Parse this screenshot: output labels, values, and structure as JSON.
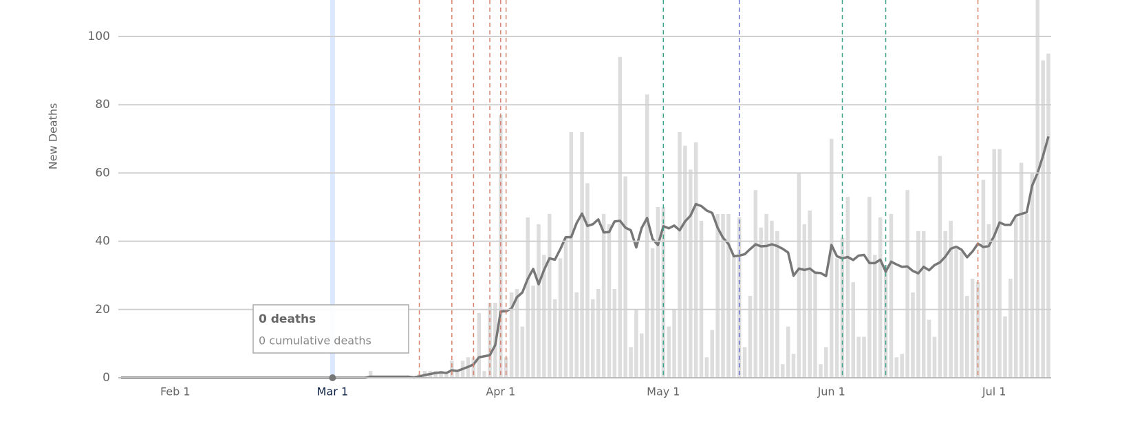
{
  "chart_data": {
    "type": "bar",
    "y_label": "New Deaths",
    "x": [
      "Jan 22",
      "Jan 23",
      "Jan 24",
      "Jan 25",
      "Jan 26",
      "Jan 27",
      "Jan 28",
      "Jan 29",
      "Jan 30",
      "Jan 31",
      "Feb 1",
      "Feb 2",
      "Feb 3",
      "Feb 4",
      "Feb 5",
      "Feb 6",
      "Feb 7",
      "Feb 8",
      "Feb 9",
      "Feb 10",
      "Feb 11",
      "Feb 12",
      "Feb 13",
      "Feb 14",
      "Feb 15",
      "Feb 16",
      "Feb 17",
      "Feb 18",
      "Feb 19",
      "Feb 20",
      "Feb 21",
      "Feb 22",
      "Feb 23",
      "Feb 24",
      "Feb 25",
      "Feb 26",
      "Feb 27",
      "Feb 28",
      "Feb 29",
      "Mar 1",
      "Mar 2",
      "Mar 3",
      "Mar 4",
      "Mar 5",
      "Mar 6",
      "Mar 7",
      "Mar 8",
      "Mar 9",
      "Mar 10",
      "Mar 11",
      "Mar 12",
      "Mar 13",
      "Mar 14",
      "Mar 15",
      "Mar 16",
      "Mar 17",
      "Mar 18",
      "Mar 19",
      "Mar 20",
      "Mar 21",
      "Mar 22",
      "Mar 23",
      "Mar 24",
      "Mar 25",
      "Mar 26",
      "Mar 27",
      "Mar 28",
      "Mar 29",
      "Mar 30",
      "Mar 31",
      "Apr 1",
      "Apr 2",
      "Apr 3",
      "Apr 4",
      "Apr 5",
      "Apr 6",
      "Apr 7",
      "Apr 8",
      "Apr 9",
      "Apr 10",
      "Apr 11",
      "Apr 12",
      "Apr 13",
      "Apr 14",
      "Apr 15",
      "Apr 16",
      "Apr 17",
      "Apr 18",
      "Apr 19",
      "Apr 20",
      "Apr 21",
      "Apr 22",
      "Apr 23",
      "Apr 24",
      "Apr 25",
      "Apr 26",
      "Apr 27",
      "Apr 28",
      "Apr 29",
      "Apr 30",
      "May 1",
      "May 2",
      "May 3",
      "May 4",
      "May 5",
      "May 6",
      "May 7",
      "May 8",
      "May 9",
      "May 10",
      "May 11",
      "May 12",
      "May 13",
      "May 14",
      "May 15",
      "May 16",
      "May 17",
      "May 18",
      "May 19",
      "May 20",
      "May 21",
      "May 22",
      "May 23",
      "May 24",
      "May 25",
      "May 26",
      "May 27",
      "May 28",
      "May 29",
      "May 30",
      "May 31",
      "Jun 1",
      "Jun 2",
      "Jun 3",
      "Jun 4",
      "Jun 5",
      "Jun 6",
      "Jun 7",
      "Jun 8",
      "Jun 9",
      "Jun 10",
      "Jun 11",
      "Jun 12",
      "Jun 13",
      "Jun 14",
      "Jun 15",
      "Jun 16",
      "Jun 17",
      "Jun 18",
      "Jun 19",
      "Jun 20",
      "Jun 21",
      "Jun 22",
      "Jun 23",
      "Jun 24",
      "Jun 25",
      "Jun 26",
      "Jun 27",
      "Jun 28",
      "Jun 29",
      "Jun 30",
      "Jul 1",
      "Jul 2",
      "Jul 3",
      "Jul 4",
      "Jul 5",
      "Jul 6",
      "Jul 7",
      "Jul 8",
      "Jul 9",
      "Jul 10",
      "Jul 11"
    ],
    "series": [
      {
        "type": "bar",
        "color": "#dddddd",
        "values": [
          0,
          0,
          0,
          0,
          0,
          0,
          0,
          0,
          0,
          0,
          0,
          0,
          0,
          0,
          0,
          0,
          0,
          0,
          0,
          0,
          0,
          0,
          0,
          0,
          0,
          0,
          0,
          0,
          0,
          0,
          0,
          0,
          0,
          0,
          0,
          0,
          0,
          0,
          0,
          0,
          0,
          0,
          0,
          0,
          0,
          0,
          2,
          0,
          0,
          0,
          0,
          0,
          0,
          0,
          0,
          1,
          2,
          2,
          2,
          2,
          1,
          5,
          2,
          5,
          6,
          6,
          19,
          2,
          22,
          22,
          77,
          6,
          25,
          26,
          15,
          47,
          27,
          45,
          36,
          48,
          23,
          35,
          41,
          72,
          25,
          72,
          57,
          23,
          26,
          48,
          45,
          26,
          94,
          59,
          9,
          20,
          13,
          83,
          38,
          50,
          50,
          15,
          20,
          72,
          68,
          61,
          69,
          46,
          6,
          14,
          48,
          48,
          48,
          36,
          47,
          9,
          24,
          55,
          44,
          48,
          46,
          43,
          4,
          15,
          7,
          60,
          45,
          49,
          31,
          4,
          9,
          70,
          35,
          41,
          53,
          28,
          12,
          12,
          53,
          36,
          47,
          33,
          48,
          6,
          7,
          55,
          25,
          43,
          43,
          17,
          12,
          65,
          43,
          46,
          38,
          37,
          24,
          29,
          28,
          58,
          45,
          67,
          67,
          18,
          29,
          47,
          63,
          48,
          60,
          115,
          93,
          95
        ]
      },
      {
        "type": "line",
        "color": "#777777",
        "values": [
          0,
          0,
          0,
          0,
          0,
          0,
          0,
          0,
          0,
          0,
          0,
          0,
          0,
          0,
          0,
          0,
          0,
          0,
          0,
          0,
          0,
          0,
          0,
          0,
          0,
          0,
          0,
          0,
          0,
          0,
          0,
          0,
          0,
          0,
          0,
          0,
          0,
          0,
          0,
          0,
          0,
          0,
          0,
          0,
          0,
          0,
          0.3,
          0.3,
          0.3,
          0.3,
          0.3,
          0.3,
          0.3,
          0.3,
          0.1,
          0.4,
          0.8,
          1.1,
          1.4,
          1.6,
          1.4,
          2.2,
          2,
          2.6,
          3.2,
          3.9,
          6,
          6.3,
          6.6,
          9.6,
          19.4,
          19.5,
          20.3,
          23.6,
          25,
          29,
          31.9,
          27.4,
          31.6,
          35,
          34.6,
          37.7,
          41.2,
          41.2,
          45.3,
          48.1,
          44.5,
          45,
          46.4,
          42.6,
          42.7,
          45.8,
          46,
          44,
          43.2,
          38.2,
          43.9,
          46.8,
          40.7,
          38.9,
          44.4,
          43.8,
          44.6,
          43.2,
          45.8,
          47.5,
          50.9,
          50.3,
          49,
          48.3,
          44,
          41,
          39.2,
          35.6,
          35.8,
          36.2,
          37.7,
          39.1,
          38.5,
          38.6,
          39.1,
          38.6,
          37.8,
          36.7,
          29.9,
          32,
          31.6,
          32,
          30.8,
          30.7,
          29.8,
          38.9,
          35.6,
          35,
          35.4,
          34.5,
          35.8,
          36,
          33.6,
          33.6,
          34.6,
          31.1,
          34,
          33.2,
          32.5,
          32.6,
          31.3,
          30.6,
          32.5,
          31.5,
          33,
          33.8,
          35.5,
          37.8,
          38.4,
          37.5,
          35.3,
          37,
          39.3,
          38.3,
          38.6,
          41.6,
          45.5,
          44.8,
          44.8,
          47.5,
          48,
          48.5,
          56.3,
          60,
          65,
          70.7
        ]
      }
    ],
    "xticks": [
      "Feb 1",
      "Mar 1",
      "Apr 1",
      "May 1",
      "Jun 1",
      "Jul 1"
    ],
    "ylim": [
      0,
      110
    ],
    "yticks": [
      0,
      20,
      40,
      60,
      80,
      100
    ],
    "grid": true,
    "events": [
      {
        "x": "Mar 17",
        "color": "#d9826b"
      },
      {
        "x": "Mar 23",
        "color": "#d9826b"
      },
      {
        "x": "Mar 27",
        "color": "#d9826b"
      },
      {
        "x": "Mar 30",
        "color": "#d9826b"
      },
      {
        "x": "Apr 1",
        "color": "#d9826b"
      },
      {
        "x": "Apr 2",
        "color": "#d9826b"
      },
      {
        "x": "May 1",
        "color": "#3aa58a"
      },
      {
        "x": "May 15",
        "color": "#6a6fd0"
      },
      {
        "x": "Jun 3",
        "color": "#3aa58a"
      },
      {
        "x": "Jun 11",
        "color": "#3aa58a"
      },
      {
        "x": "Jun 28",
        "color": "#d9826b"
      }
    ],
    "tooltip": {
      "x": "Mar 1",
      "title": "0 deaths",
      "subtitle": "0 cumulative deaths"
    }
  }
}
